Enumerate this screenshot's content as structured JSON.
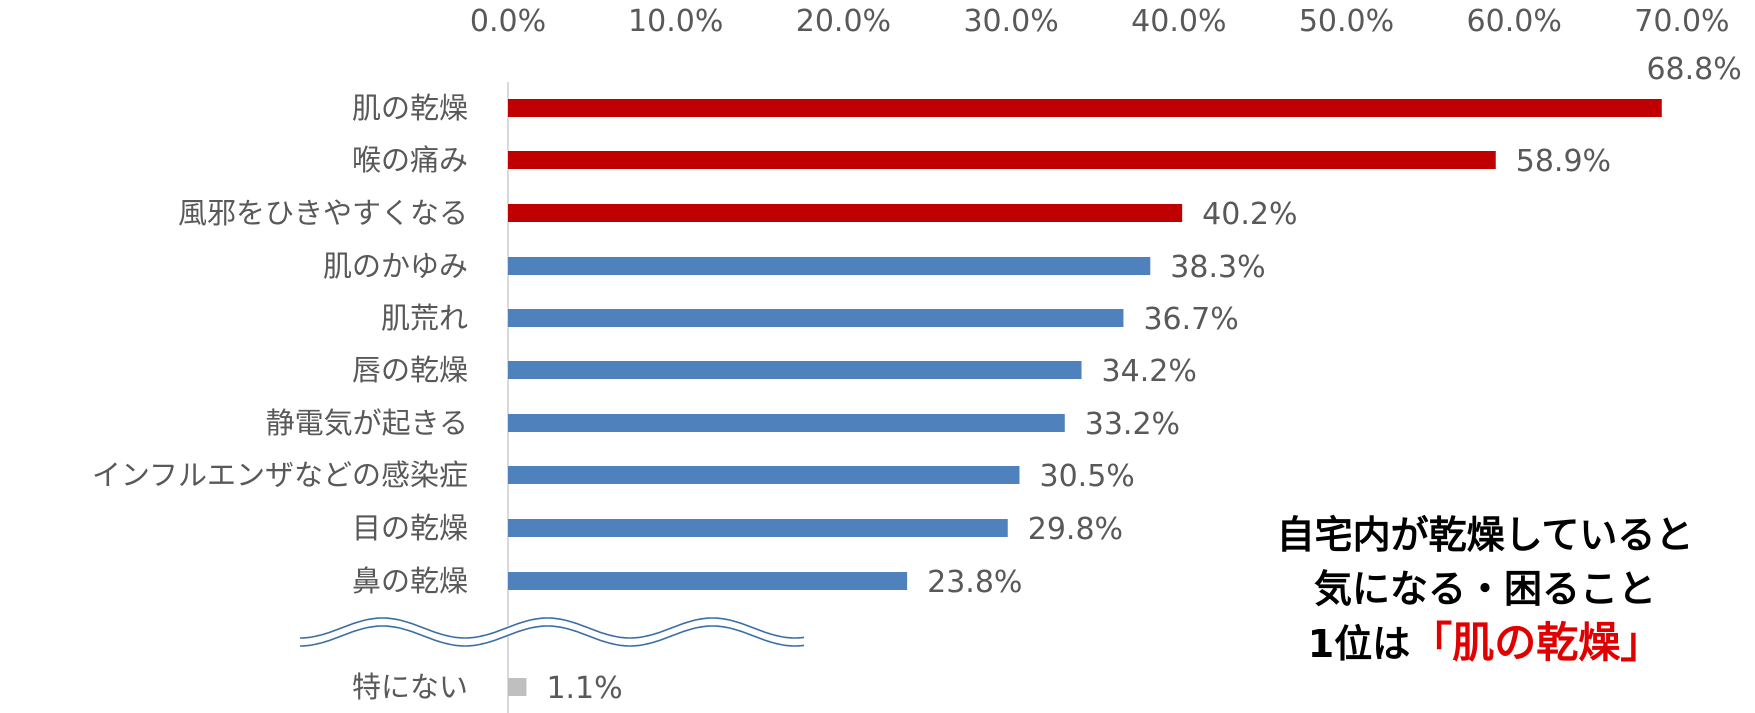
{
  "chart_data": {
    "type": "bar",
    "orientation": "horizontal",
    "categories": [
      "肌の乾燥",
      "喉の痛み",
      "風邪をひきやすくなる",
      "肌のかゆみ",
      "肌荒れ",
      "唇の乾燥",
      "静電気が起きる",
      "インフルエンザなどの感染症",
      "目の乾燥",
      "鼻の乾燥",
      "特にない"
    ],
    "values": [
      68.8,
      58.9,
      40.2,
      38.3,
      36.7,
      34.2,
      33.2,
      30.5,
      29.8,
      23.8,
      1.1
    ],
    "value_labels": [
      "68.8%",
      "58.9%",
      "40.2%",
      "38.3%",
      "36.7%",
      "34.2%",
      "33.2%",
      "30.5%",
      "29.8%",
      "23.8%",
      "1.1%"
    ],
    "colors": [
      "#c00000",
      "#c00000",
      "#c00000",
      "#4f81bd",
      "#4f81bd",
      "#4f81bd",
      "#4f81bd",
      "#4f81bd",
      "#4f81bd",
      "#4f81bd",
      "#bfbfbf"
    ],
    "xlim": [
      0,
      70
    ],
    "x_ticks": [
      "0.0%",
      "10.0%",
      "20.0%",
      "30.0%",
      "40.0%",
      "50.0%",
      "60.0%",
      "70.0%"
    ],
    "x_axis_position": "top",
    "axis_break_before_last": true,
    "grid": false,
    "title": "",
    "xlabel": "",
    "ylabel": ""
  },
  "annotation": {
    "line1": "自宅内が乾燥していると",
    "line2": "気になる・困ること",
    "line3_prefix": "1位は",
    "line3_highlight": "「肌の乾燥」"
  }
}
